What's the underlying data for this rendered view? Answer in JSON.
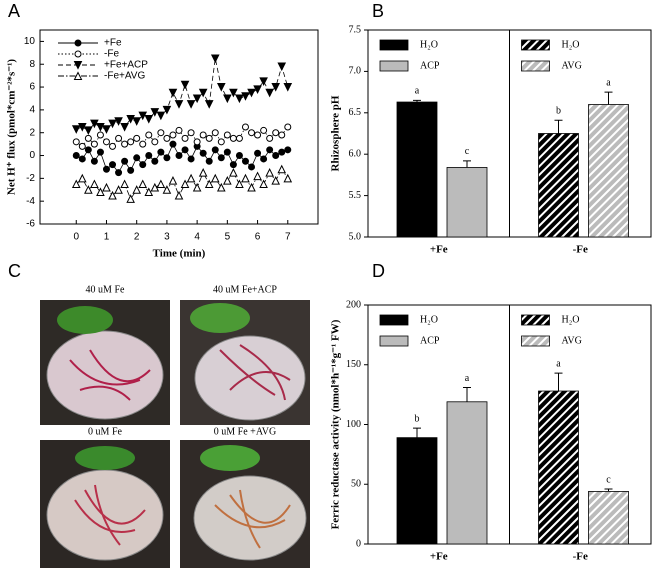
{
  "chart_data": [
    {
      "type": "line",
      "panel": "A",
      "xlabel": "Time (min)",
      "ylabel": "Net H⁺ flux (pmol*cm⁻²*s⁻¹)",
      "xlim": [
        -1.2,
        8
      ],
      "xticks": [
        0,
        1,
        2,
        3,
        4,
        5,
        6,
        7
      ],
      "ylim": [
        -6,
        11
      ],
      "yticks": [
        -6,
        -4,
        -2,
        0,
        2,
        4,
        6,
        8,
        10
      ],
      "x": [
        0,
        0.2,
        0.4,
        0.6,
        0.8,
        1,
        1.2,
        1.4,
        1.6,
        1.8,
        2,
        2.2,
        2.4,
        2.6,
        2.8,
        3,
        3.2,
        3.4,
        3.6,
        3.8,
        4,
        4.2,
        4.4,
        4.6,
        4.8,
        5,
        5.2,
        5.4,
        5.6,
        5.8,
        6,
        6.2,
        6.4,
        6.6,
        6.8,
        7
      ],
      "legend": "upper left",
      "series": [
        {
          "name": "+Fe",
          "color": "#000000",
          "marker": "circle",
          "filled": true,
          "dash": "solid",
          "values": [
            0,
            -0.3,
            0.5,
            -0.5,
            0.3,
            -1.2,
            -0.8,
            -1.5,
            -0.5,
            -1.3,
            -0.2,
            -0.8,
            0,
            -0.5,
            0.3,
            -0.2,
            1,
            0,
            0.5,
            -0.3,
            0.8,
            0.2,
            -0.5,
            0.5,
            -0.2,
            0.3,
            -0.8,
            0,
            -0.5,
            -1.0,
            0.2,
            -0.3,
            0.5,
            0,
            0.3,
            0.5
          ]
        },
        {
          "name": "-Fe",
          "color": "#000000",
          "marker": "circle",
          "filled": false,
          "dash": "dotted",
          "values": [
            1.2,
            0.8,
            1.5,
            1,
            1.8,
            1.2,
            0.8,
            1.5,
            1,
            1.2,
            1.5,
            1,
            1.8,
            1.2,
            2,
            1.5,
            1.8,
            2.2,
            1.5,
            2,
            1.2,
            1.8,
            1.5,
            2,
            1.2,
            1.8,
            1.5,
            1.5,
            2.5,
            2,
            1.8,
            2.2,
            1.5,
            2,
            1.8,
            2.5
          ]
        },
        {
          "name": "+Fe+ACP",
          "color": "#000000",
          "marker": "triangle-down",
          "filled": true,
          "dash": "dashed",
          "values": [
            2.3,
            2.5,
            2.2,
            2.8,
            2.5,
            2.3,
            2.8,
            3,
            2.5,
            3.2,
            3,
            3.5,
            3.2,
            3.8,
            3.5,
            4,
            5.5,
            4.5,
            6.2,
            4.5,
            5,
            5.5,
            4.5,
            8.5,
            6,
            5,
            5.5,
            5,
            5.2,
            5.5,
            5.8,
            6.5,
            5.5,
            6,
            7.8,
            6
          ]
        },
        {
          "name": "-Fe+AVG",
          "color": "#000000",
          "marker": "triangle-up",
          "filled": false,
          "dash": "dashdot",
          "values": [
            -2.5,
            -2,
            -3,
            -2.5,
            -3.2,
            -2.8,
            -3.5,
            -3,
            -2.5,
            -3.8,
            -3,
            -2.5,
            -3.2,
            -2.8,
            -2.5,
            -3,
            -2.2,
            -3.5,
            -2.5,
            -2,
            -2.8,
            -1.5,
            -2.5,
            -2,
            -2.8,
            -2.2,
            -1.5,
            -2.5,
            -2,
            -2.8,
            -1.8,
            -2.5,
            -1.5,
            -2.2,
            -1.2,
            -2
          ]
        }
      ]
    },
    {
      "type": "bar",
      "panel": "B",
      "ylabel": "Rhizosphere pH",
      "ylim": [
        5,
        7.5
      ],
      "yticks": [
        {
          "value": 5,
          "label": "5.0"
        },
        {
          "value": 5.5,
          "label": "5.5"
        },
        {
          "value": 6,
          "label": "6.0"
        },
        {
          "value": 6.5,
          "label": "6.5"
        },
        {
          "value": 7,
          "label": "7.0"
        },
        {
          "value": 7.5,
          "label": "7.5"
        }
      ],
      "groups": [
        "+Fe",
        "-Fe"
      ],
      "bars": [
        {
          "name": "H₂O",
          "group": 0,
          "value": 6.63,
          "error": 0.02,
          "letter": "a",
          "color": "#000000",
          "hatch": false
        },
        {
          "name": "ACP",
          "group": 0,
          "value": 5.84,
          "error": 0.08,
          "letter": "c",
          "color": "#bbbbbb",
          "hatch": false
        },
        {
          "name": "H₂O",
          "group": 1,
          "value": 6.25,
          "error": 0.16,
          "letter": "b",
          "color": "#000000",
          "hatch": true
        },
        {
          "name": "AVG",
          "group": 1,
          "value": 6.6,
          "error": 0.15,
          "letter": "a",
          "color": "#bbbbbb",
          "hatch": true
        }
      ]
    },
    {
      "type": "bar",
      "panel": "D",
      "ylabel": "Ferric reductase activity  (nmol*h⁻¹*g⁻¹ FW)",
      "ylim": [
        0,
        200
      ],
      "yticks": [
        0,
        50,
        100,
        150,
        200
      ],
      "groups": [
        "+Fe",
        "-Fe"
      ],
      "bars": [
        {
          "name": "H₂O",
          "group": 0,
          "value": 89,
          "error": 8,
          "letter": "b",
          "color": "#000000",
          "hatch": false
        },
        {
          "name": "ACP",
          "group": 0,
          "value": 119,
          "error": 12,
          "letter": "a",
          "color": "#bbbbbb",
          "hatch": false
        },
        {
          "name": "H₂O",
          "group": 1,
          "value": 128,
          "error": 15,
          "letter": "a",
          "color": "#000000",
          "hatch": true
        },
        {
          "name": "AVG",
          "group": 1,
          "value": 44,
          "error": 2,
          "letter": "c",
          "color": "#bbbbbb",
          "hatch": true
        }
      ]
    }
  ],
  "photos": {
    "panel": "C",
    "labels": [
      "40 uM Fe",
      "40 uM Fe+ACP",
      "0 uM Fe",
      "0 uM Fe +AVG"
    ]
  }
}
